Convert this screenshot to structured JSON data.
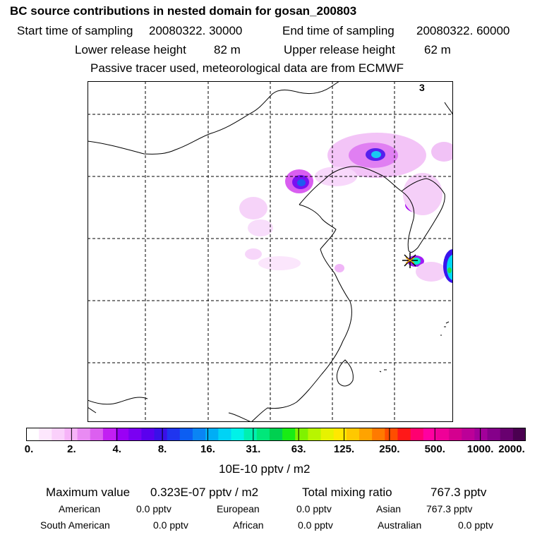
{
  "header": {
    "title": "BC  source contributions in nested domain for gosan_200803",
    "start_label": "Start time of sampling",
    "start_value": "20080322. 30000",
    "end_label": "End time of sampling",
    "end_value": "20080322. 60000",
    "lower_label": "Lower release height",
    "lower_value": "82 m",
    "upper_label": "Upper release height",
    "upper_value": "62 m",
    "note": "Passive tracer used, meteorological data are from ECMWF"
  },
  "map": {
    "corner_label": "3"
  },
  "colorbar": {
    "colors": [
      "#ffffff",
      "#fde7fd",
      "#fad0fb",
      "#f6b3f8",
      "#e98bf3",
      "#dc5ff0",
      "#c21ff2",
      "#9a00f5",
      "#7a00f2",
      "#5a00ee",
      "#3a10e8",
      "#1f35ef",
      "#0c5ef2",
      "#0a84f4",
      "#00aef5",
      "#00d3f5",
      "#00f2e8",
      "#00f0b0",
      "#00e77a",
      "#00d050",
      "#19ec15",
      "#7ff200",
      "#b8f500",
      "#e7f200",
      "#ffe800",
      "#ffc800",
      "#ffa300",
      "#ff7a00",
      "#ff4d00",
      "#ff1818",
      "#ff0070",
      "#ff00a0",
      "#ef0098",
      "#d4008f",
      "#bc0098",
      "#a2009a",
      "#85008a",
      "#68006f",
      "#4a0050"
    ],
    "tick_labels": [
      "0.",
      "2.",
      "4.",
      "8.",
      "16.",
      "31.",
      "63.",
      "125.",
      "250.",
      "500.",
      "1000.",
      "2000."
    ],
    "unit": "10E-10 pptv / m2"
  },
  "stats": {
    "max_label": "Maximum value",
    "max_value": "0.323E-07 pptv / m2",
    "total_label": "Total mixing ratio",
    "total_value": "767.3 pptv",
    "regions": [
      {
        "name": "American",
        "value": "0.0 pptv"
      },
      {
        "name": "European",
        "value": "0.0 pptv"
      },
      {
        "name": "Asian",
        "value": "767.3 pptv"
      },
      {
        "name": "South American",
        "value": "0.0 pptv"
      },
      {
        "name": "African",
        "value": "0.0 pptv"
      },
      {
        "name": "Australian",
        "value": "0.0 pptv"
      }
    ]
  }
}
